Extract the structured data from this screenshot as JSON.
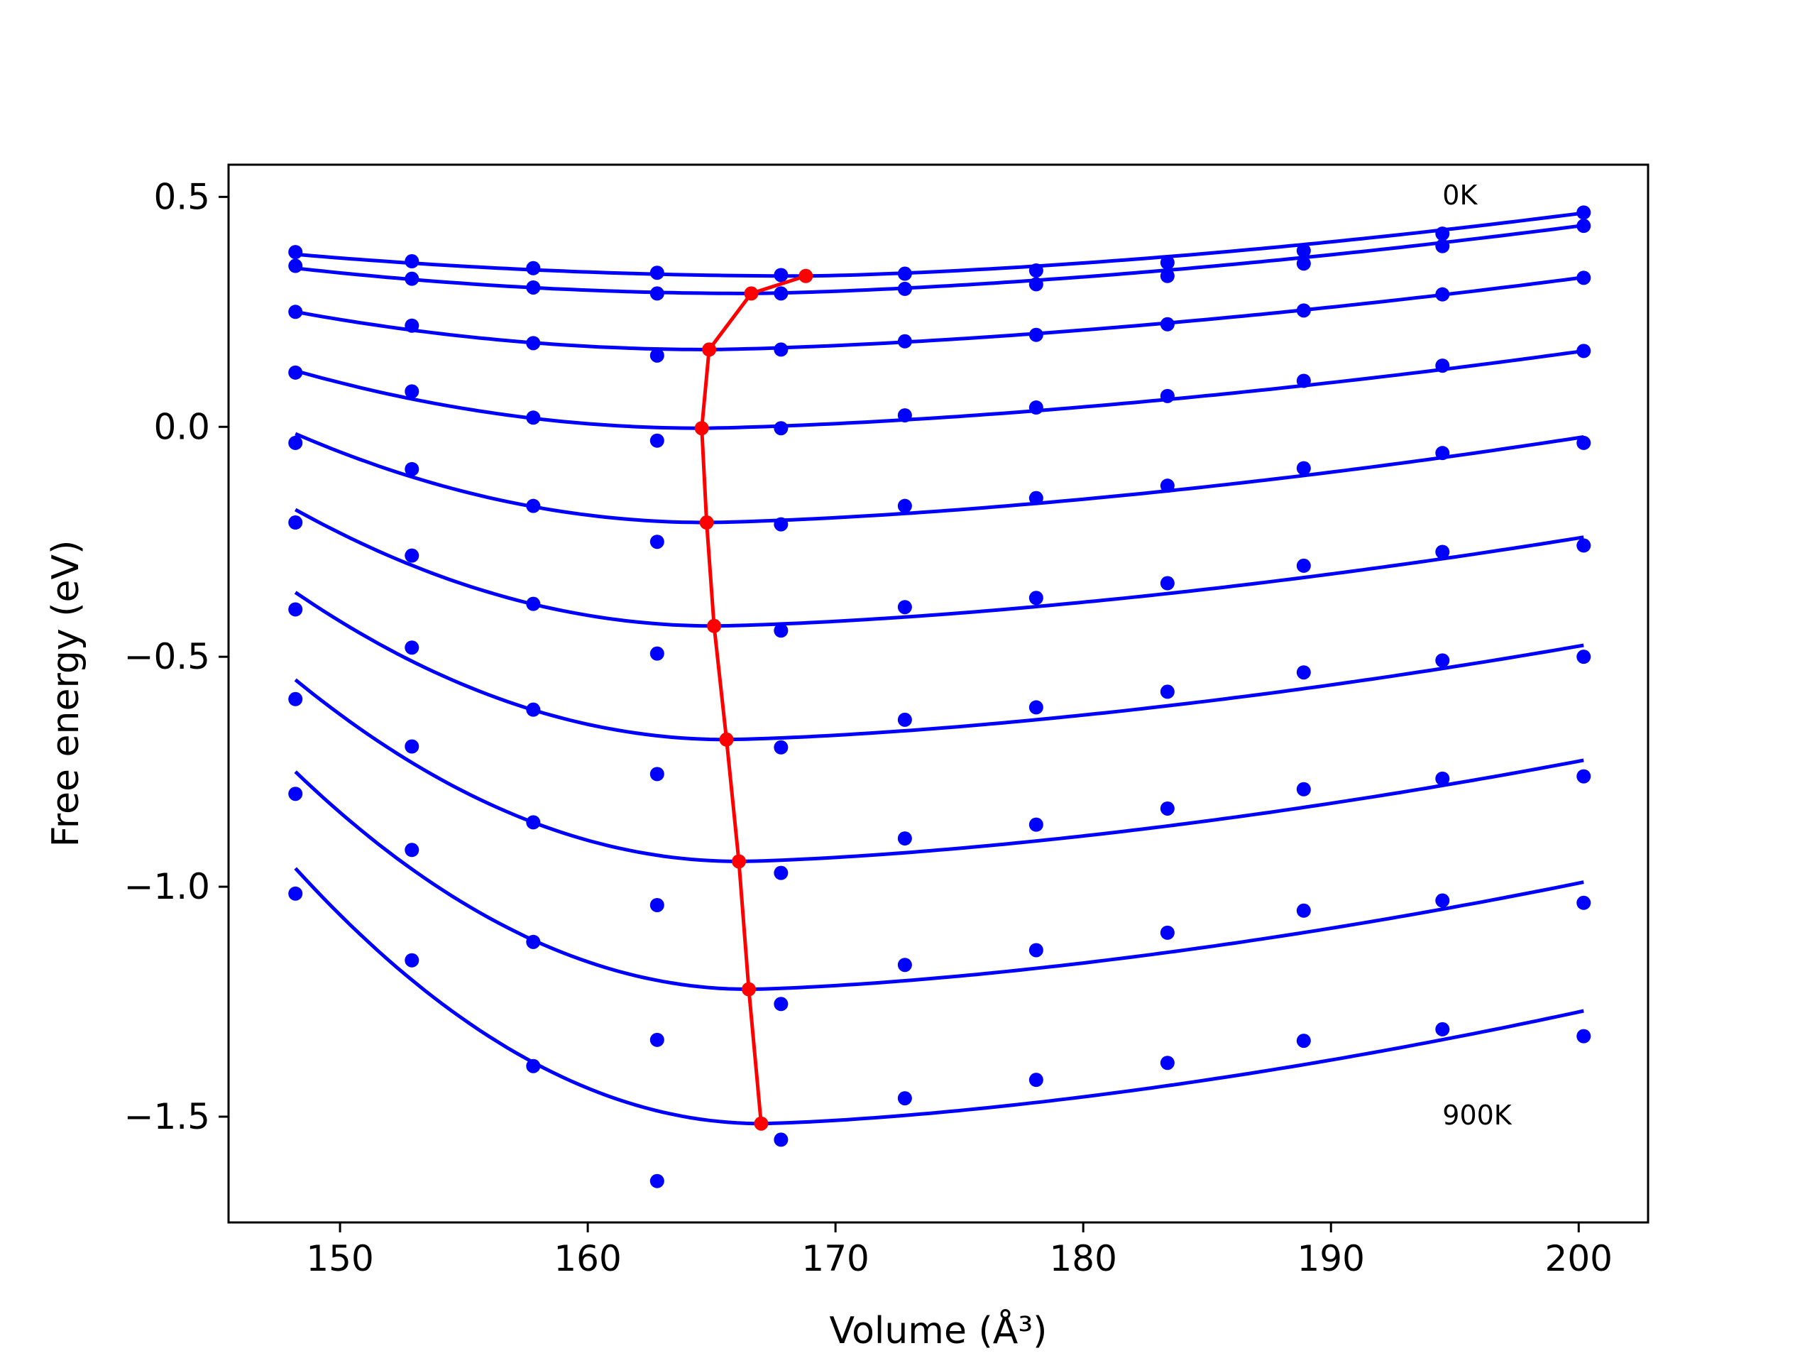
{
  "chart_data": {
    "type": "line",
    "title": "",
    "xlabel": "Volume (Å³)",
    "ylabel": "Free energy (eV)",
    "xlim": [
      145.5,
      202.8
    ],
    "ylim": [
      -1.73,
      0.57
    ],
    "xticks": [
      150,
      160,
      170,
      180,
      190,
      200
    ],
    "yticks": [
      0.5,
      0.0,
      -0.5,
      -1.0,
      -1.5
    ],
    "xtick_labels": [
      "150",
      "160",
      "170",
      "180",
      "190",
      "200"
    ],
    "ytick_labels": [
      "0.5",
      "0.0",
      "−0.5",
      "−1.0",
      "−1.5"
    ],
    "grid": false,
    "legend": "none",
    "colors": {
      "points": "#0000ff",
      "fits": "#0000ff",
      "minima": "#ff0000",
      "axes": "#000000"
    },
    "volumes": [
      148.2,
      152.9,
      157.8,
      162.8,
      167.8,
      172.8,
      178.1,
      183.4,
      188.9,
      194.5,
      200.2
    ],
    "annotations": [
      {
        "text": "0K",
        "x": 194.5,
        "y": 0.505
      },
      {
        "text": "900K",
        "x": 194.5,
        "y": -1.495
      }
    ],
    "series": [
      {
        "points": [
          0.38,
          0.36,
          0.345,
          0.335,
          0.33,
          0.333,
          0.34,
          0.357,
          0.383,
          0.42,
          0.466
        ],
        "fit": {
          "vmin": 168.8,
          "emin": 0.328,
          "left": 0.375,
          "right": 0.465
        }
      },
      {
        "points": [
          0.35,
          0.322,
          0.303,
          0.29,
          0.29,
          0.3,
          0.31,
          0.328,
          0.355,
          0.393,
          0.437
        ],
        "fit": {
          "vmin": 166.6,
          "emin": 0.29,
          "left": 0.345,
          "right": 0.438
        }
      },
      {
        "points": [
          0.25,
          0.22,
          0.182,
          0.155,
          0.168,
          0.186,
          0.2,
          0.223,
          0.253,
          0.288,
          0.324
        ],
        "fit": {
          "vmin": 164.9,
          "emin": 0.168,
          "left": 0.25,
          "right": 0.325
        }
      },
      {
        "points": [
          0.118,
          0.077,
          0.02,
          -0.03,
          -0.003,
          0.025,
          0.042,
          0.067,
          0.1,
          0.133,
          0.165
        ],
        "fit": {
          "vmin": 164.6,
          "emin": -0.003,
          "left": 0.122,
          "right": 0.165
        }
      },
      {
        "points": [
          -0.035,
          -0.092,
          -0.172,
          -0.25,
          -0.212,
          -0.172,
          -0.155,
          -0.128,
          -0.09,
          -0.057,
          -0.035
        ],
        "fit": {
          "vmin": 164.8,
          "emin": -0.208,
          "left": -0.015,
          "right": -0.022
        }
      },
      {
        "points": [
          -0.208,
          -0.28,
          -0.385,
          -0.493,
          -0.443,
          -0.392,
          -0.372,
          -0.34,
          -0.302,
          -0.272,
          -0.258
        ],
        "fit": {
          "vmin": 165.1,
          "emin": -0.433,
          "left": -0.18,
          "right": -0.24
        }
      },
      {
        "points": [
          -0.397,
          -0.48,
          -0.615,
          -0.755,
          -0.697,
          -0.637,
          -0.61,
          -0.576,
          -0.534,
          -0.508,
          -0.5
        ],
        "fit": {
          "vmin": 165.6,
          "emin": -0.68,
          "left": -0.36,
          "right": -0.475
        }
      },
      {
        "points": [
          -0.592,
          -0.695,
          -0.86,
          -1.04,
          -0.97,
          -0.895,
          -0.865,
          -0.83,
          -0.788,
          -0.765,
          -0.76
        ],
        "fit": {
          "vmin": 166.1,
          "emin": -0.945,
          "left": -0.55,
          "right": -0.725
        }
      },
      {
        "points": [
          -0.798,
          -0.92,
          -1.12,
          -1.333,
          -1.255,
          -1.17,
          -1.138,
          -1.1,
          -1.052,
          -1.03,
          -1.035
        ],
        "fit": {
          "vmin": 166.5,
          "emin": -1.223,
          "left": -0.75,
          "right": -0.99
        }
      },
      {
        "points": [
          -1.015,
          -1.16,
          -1.39,
          -1.64,
          -1.55,
          -1.46,
          -1.42,
          -1.383,
          -1.335,
          -1.31,
          -1.325
        ],
        "fit": {
          "vmin": 167.0,
          "emin": -1.515,
          "left": -0.96,
          "right": -1.27
        }
      }
    ],
    "minima_line": {
      "x": [
        168.8,
        166.6,
        164.9,
        164.6,
        164.8,
        165.1,
        165.6,
        166.1,
        166.5,
        167.0
      ],
      "y": [
        0.328,
        0.29,
        0.168,
        -0.003,
        -0.208,
        -0.433,
        -0.68,
        -0.945,
        -1.223,
        -1.515
      ]
    }
  }
}
